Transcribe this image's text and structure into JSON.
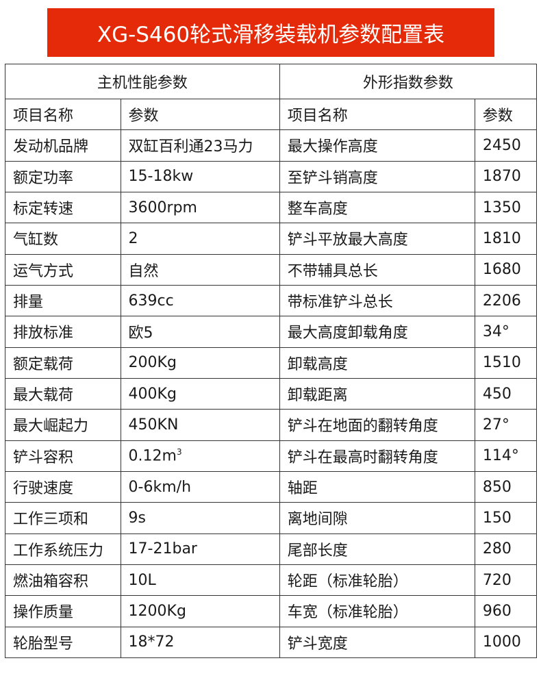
{
  "title": "XG-S460轮式滑移装载机参数配置表",
  "sections": {
    "left": "主机性能参数",
    "right": "外形指数参数"
  },
  "columns": {
    "name": "项目名称",
    "value": "参数"
  },
  "rows": [
    {
      "l_name": "发动机品牌",
      "l_val": "双缸百利通23马力",
      "r_name": "最大操作高度",
      "r_val": "2450"
    },
    {
      "l_name": "额定功率",
      "l_val": "15-18kw",
      "r_name": "至铲斗销高度",
      "r_val": "1870"
    },
    {
      "l_name": "标定转速",
      "l_val": "3600rpm",
      "r_name": "整车高度",
      "r_val": "1350"
    },
    {
      "l_name": "气缸数",
      "l_val": "2",
      "r_name": "铲斗平放最大高度",
      "r_val": "1810"
    },
    {
      "l_name": "运气方式",
      "l_val": "自然",
      "r_name": "不带辅具总长",
      "r_val": "1680"
    },
    {
      "l_name": "排量",
      "l_val": "639cc",
      "r_name": "带标准铲斗总长",
      "r_val": "2206"
    },
    {
      "l_name": "排放标准",
      "l_val": "欧5",
      "r_name": "最大高度卸载角度",
      "r_val": "34°"
    },
    {
      "l_name": "额定载荷",
      "l_val": "200Kg",
      "r_name": "卸载高度",
      "r_val": "1510"
    },
    {
      "l_name": "最大载荷",
      "l_val": "400Kg",
      "r_name": "卸载距离",
      "r_val": "450"
    },
    {
      "l_name": "最大崛起力",
      "l_val": "450KN",
      "r_name": "铲斗在地面的翻转角度",
      "r_val": "27°"
    },
    {
      "l_name": "铲斗容积",
      "l_val": "0.12m",
      "l_sup": "3",
      "r_name": "铲斗在最高时翻转角度",
      "r_val": "114°"
    },
    {
      "l_name": "行驶速度",
      "l_val": "0-6km/h",
      "r_name": "轴距",
      "r_val": "850"
    },
    {
      "l_name": "工作三项和",
      "l_val": "9s",
      "r_name": "离地间隙",
      "r_val": "150"
    },
    {
      "l_name": "工作系统压力",
      "l_val": "17-21bar",
      "r_name": "尾部长度",
      "r_val": "280"
    },
    {
      "l_name": "燃油箱容积",
      "l_val": "10L",
      "r_name": "轮距（标准轮胎）",
      "r_val": "720"
    },
    {
      "l_name": "操作质量",
      "l_val": "1200Kg",
      "r_name": "车宽（标准轮胎）",
      "r_val": "960"
    },
    {
      "l_name": "轮胎型号",
      "l_val": "18*72",
      "r_name": "铲斗宽度",
      "r_val": "1000"
    }
  ],
  "colors": {
    "banner": "#e42a08",
    "border": "#333333"
  }
}
